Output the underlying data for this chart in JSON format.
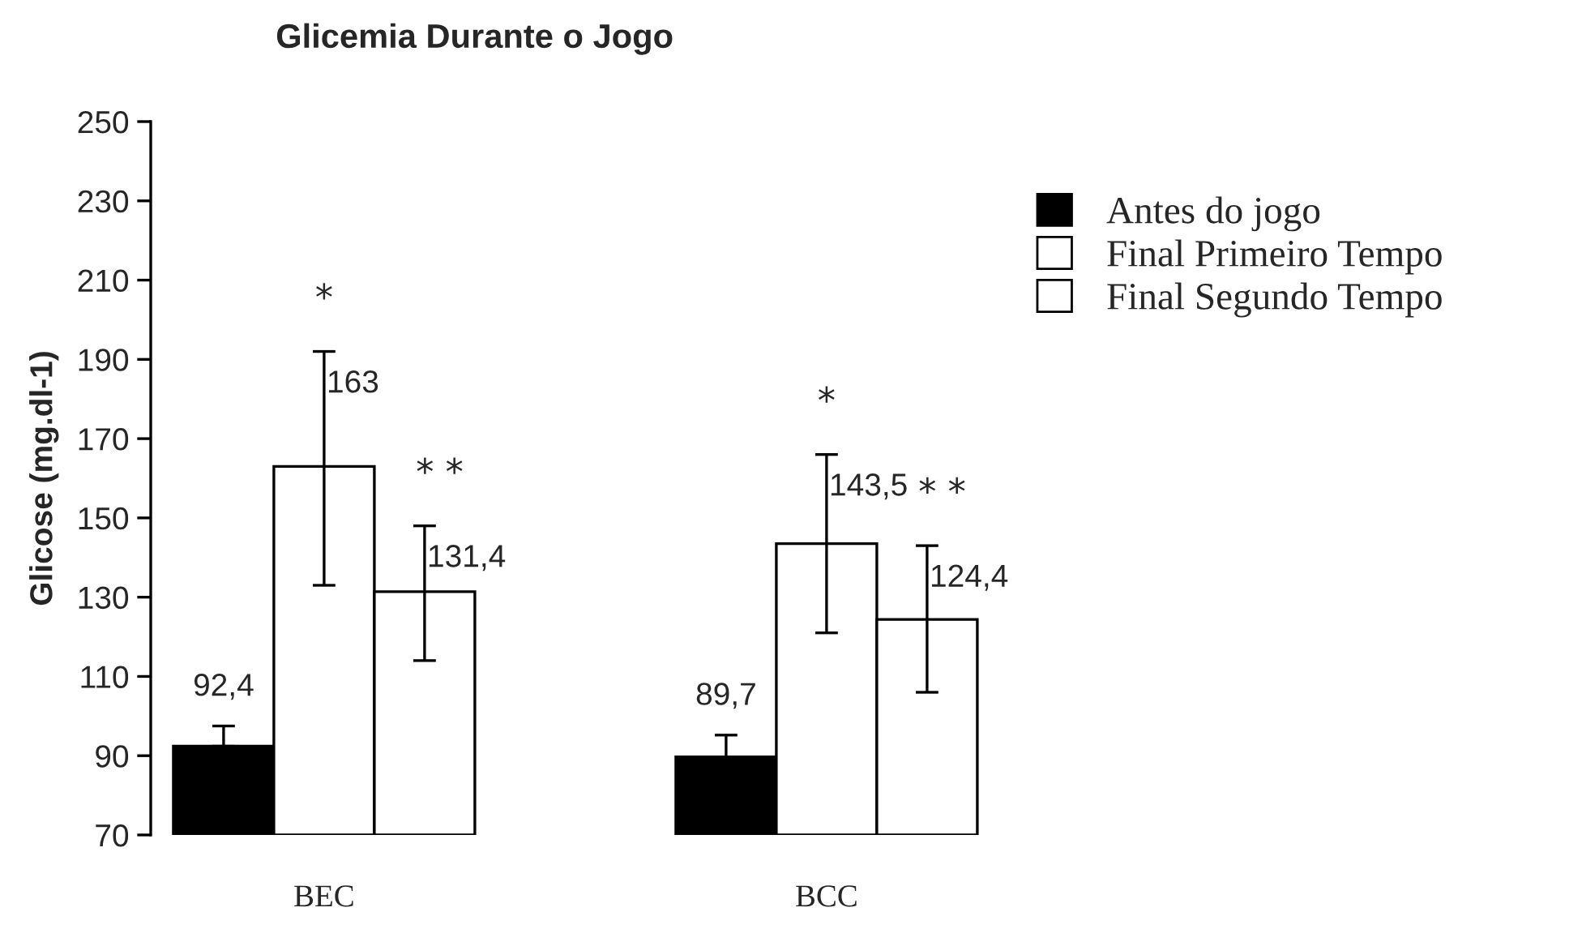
{
  "chart_data": {
    "type": "bar",
    "title": "Glicemia Durante o Jogo",
    "ylabel": "Glicose (mg.dl-1)",
    "categories": [
      "BEC",
      "BCC"
    ],
    "series": [
      {
        "name": "Antes do jogo",
        "color": "#000000",
        "values": [
          92.4,
          89.7
        ],
        "errors": [
          [
            92.4,
            97.5
          ],
          [
            89.7,
            95.2
          ]
        ],
        "value_labels": [
          "92,4",
          "89,7"
        ]
      },
      {
        "name": "Final Primeiro Tempo",
        "color": "#ffffff",
        "values": [
          163,
          143.5
        ],
        "errors": [
          [
            133,
            192
          ],
          [
            121,
            166
          ]
        ],
        "value_labels": [
          "163",
          "143,5"
        ]
      },
      {
        "name": "Final Segundo Tempo",
        "color": "#ffffff",
        "values": [
          131.4,
          124.4
        ],
        "errors": [
          [
            114,
            148
          ],
          [
            106,
            143
          ]
        ],
        "value_labels": [
          "131,4",
          "124,4"
        ]
      }
    ],
    "annotations": [
      "*",
      "* *",
      "*",
      "* *"
    ],
    "ylim": [
      70,
      250
    ],
    "yticks": [
      70,
      90,
      110,
      130,
      150,
      170,
      190,
      210,
      230,
      250
    ],
    "grid": false,
    "legend": "top right"
  }
}
